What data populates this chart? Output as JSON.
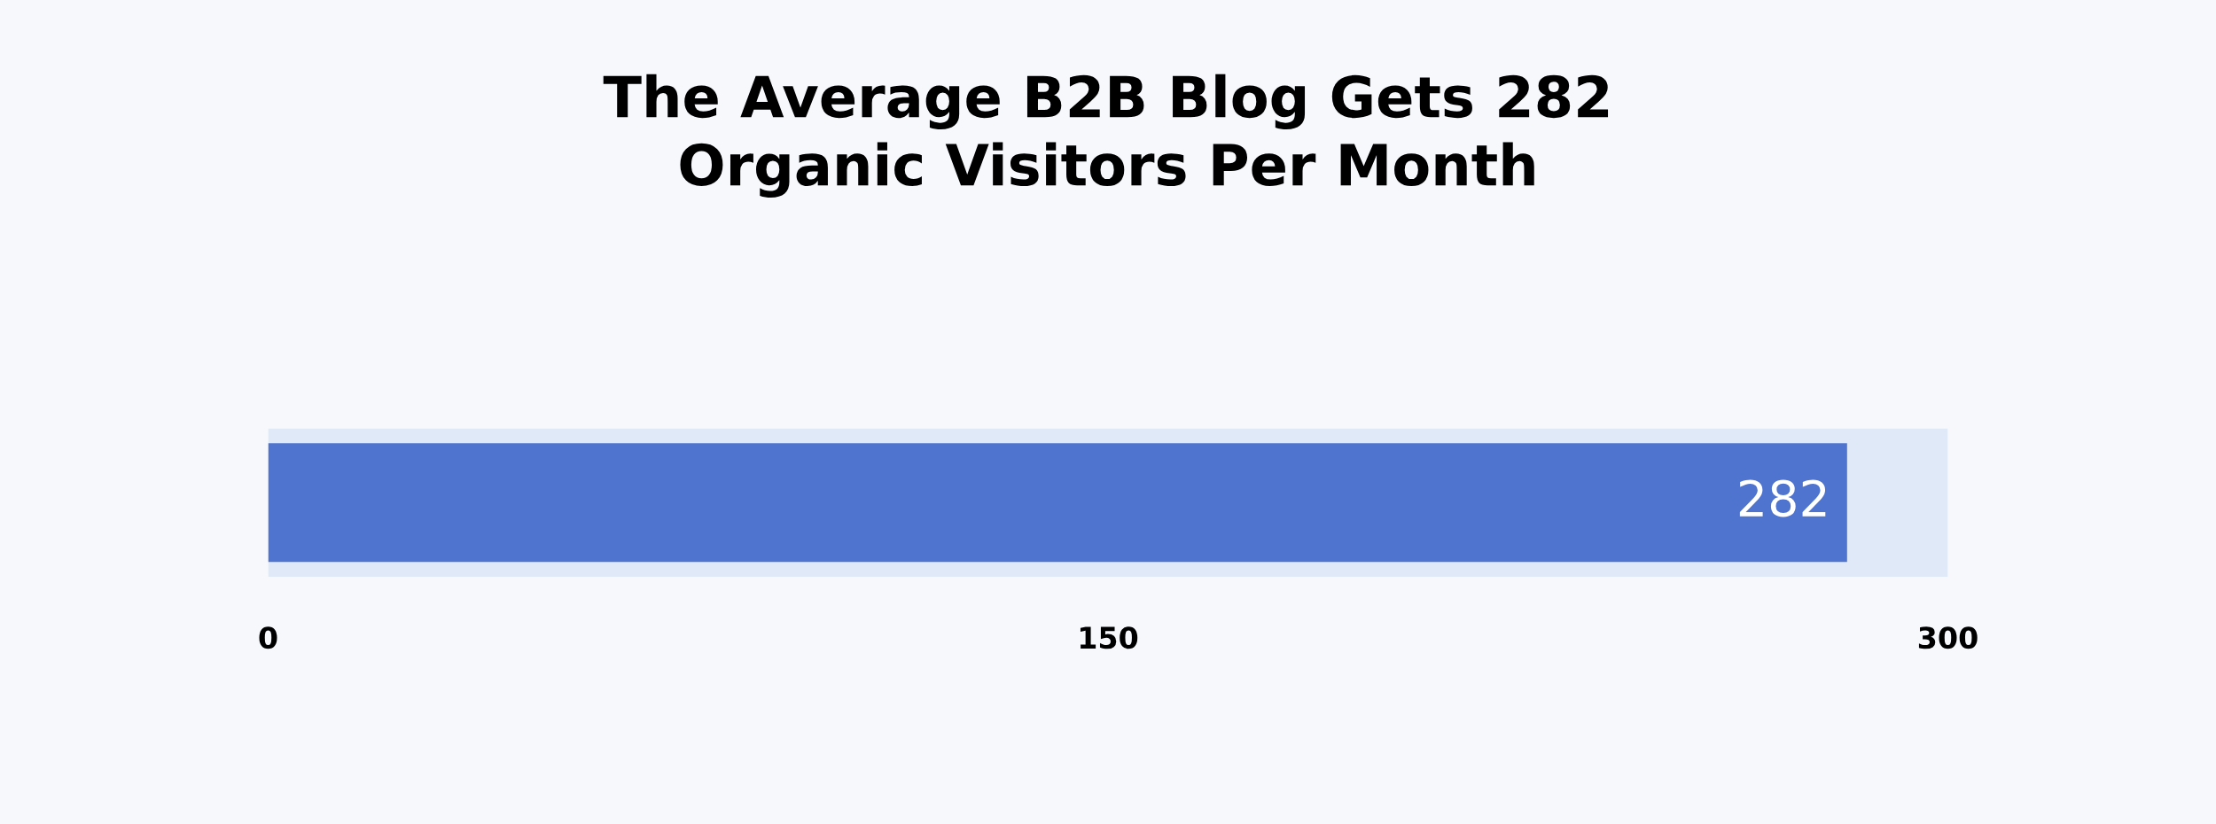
{
  "chart_data": {
    "type": "bar",
    "orientation": "horizontal",
    "title": "The Average B2B Blog Gets 282\nOrganic Visitors Per Month",
    "categories": [
      null
    ],
    "values": [
      282
    ],
    "color": "#4f74d0",
    "xlim": [
      0,
      300
    ],
    "xticks": [
      0,
      150,
      300
    ],
    "data_labels": true,
    "grid": false,
    "bands": [
      {
        "axis": "x",
        "from": 0,
        "to": 300,
        "color": "#dfe9f8"
      }
    ]
  }
}
